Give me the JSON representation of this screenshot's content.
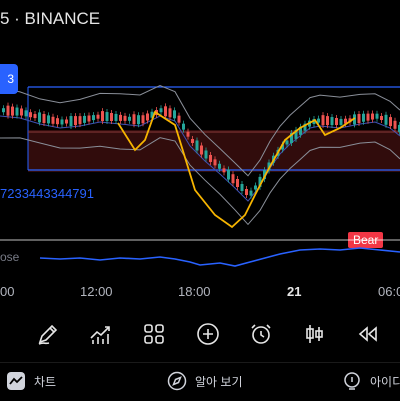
{
  "header": {
    "title": "5 · BINANCE"
  },
  "chart": {
    "id_label": "7233443344791",
    "badge": "Bear",
    "indicator_label": "ose",
    "price_flag": "3"
  },
  "time_axis": [
    {
      "label": "00",
      "bold": false
    },
    {
      "label": "12:00",
      "bold": false
    },
    {
      "label": "18:00",
      "bold": false
    },
    {
      "label": "21",
      "bold": true
    },
    {
      "label": "06:0",
      "bold": false
    }
  ],
  "toolbar": [
    {
      "icon": "pencil-icon"
    },
    {
      "icon": "chart-up-icon"
    },
    {
      "icon": "grid-icon"
    },
    {
      "icon": "plus-circle-icon"
    },
    {
      "icon": "alarm-icon"
    },
    {
      "icon": "candlestick-icon"
    },
    {
      "icon": "rewind-icon"
    }
  ],
  "nav": {
    "chart": "차트",
    "explore": "알아 보기",
    "ideas": "아이디"
  },
  "colors": {
    "background": "#000000",
    "channel": "#2962ff",
    "bullish": "#26a69a",
    "bearish": "#ef5350",
    "zigzag": "#f7b500",
    "badge": "#f23645"
  }
}
